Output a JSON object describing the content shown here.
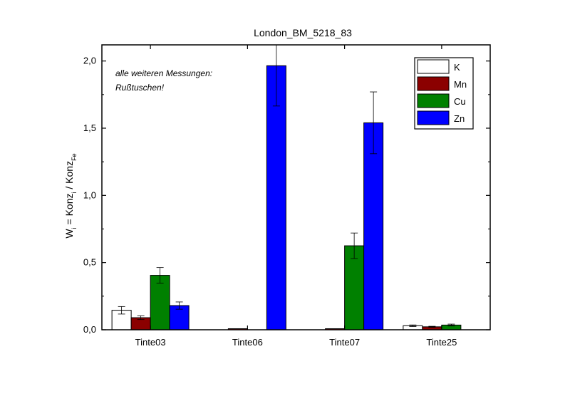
{
  "chart_data": {
    "type": "bar",
    "title": "London_BM_5218_83",
    "ylabel_parts": {
      "w": "W",
      "w_sub": "i",
      "mid": " = Konz",
      "konz_sub": "i",
      "slash": " / Konz",
      "fe_sub": "Fe"
    },
    "xlabel": "",
    "categories": [
      "Tinte03",
      "Tinte06",
      "Tinte07",
      "Tinte25"
    ],
    "ylim": [
      0,
      2.12
    ],
    "yticks": [
      0.0,
      0.5,
      1.0,
      1.5,
      2.0
    ],
    "ytick_labels": [
      "0,0",
      "0,5",
      "1,0",
      "1,5",
      "2,0"
    ],
    "annotation_lines": [
      "alle weiteren Messungen:",
      "Rußtuschen!"
    ],
    "legend_position": "top-right",
    "grid": false,
    "series": [
      {
        "name": "K",
        "color": "#ffffff",
        "values": [
          0.145,
          0.0,
          0.0,
          0.03
        ],
        "errors": [
          0.028,
          0.0,
          0.0,
          0.006
        ]
      },
      {
        "name": "Mn",
        "color": "#8b0000",
        "values": [
          0.09,
          0.008,
          0.008,
          0.022
        ],
        "errors": [
          0.014,
          0.0,
          0.0,
          0.004
        ]
      },
      {
        "name": "Cu",
        "color": "#008000",
        "values": [
          0.405,
          0.0,
          0.625,
          0.035
        ],
        "errors": [
          0.058,
          0.0,
          0.095,
          0.007
        ]
      },
      {
        "name": "Zn",
        "color": "#0000ff",
        "values": [
          0.18,
          1.965,
          1.54,
          0.0
        ],
        "errors": [
          0.027,
          0.3,
          0.23,
          0.0
        ]
      }
    ]
  }
}
